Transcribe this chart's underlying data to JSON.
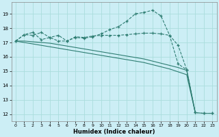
{
  "xlabel": "Humidex (Indice chaleur)",
  "xlim": [
    -0.5,
    23.5
  ],
  "ylim": [
    11.5,
    19.8
  ],
  "yticks": [
    12,
    13,
    14,
    15,
    16,
    17,
    18,
    19
  ],
  "xticks": [
    0,
    1,
    2,
    3,
    4,
    5,
    6,
    7,
    8,
    9,
    10,
    11,
    12,
    13,
    14,
    15,
    16,
    17,
    18,
    19,
    20,
    21,
    22,
    23
  ],
  "bg_color": "#cceef5",
  "grid_color": "#aadddd",
  "line_color": "#2e7d72",
  "series_flat_x": [
    0,
    1,
    2,
    3,
    4,
    5,
    6,
    7,
    8,
    9,
    10,
    11,
    12,
    13,
    14,
    15,
    16,
    17,
    18,
    19,
    20,
    21,
    22,
    23
  ],
  "series_flat_y": [
    17.1,
    17.55,
    17.5,
    17.7,
    17.35,
    17.5,
    17.1,
    17.4,
    17.35,
    17.45,
    17.5,
    17.5,
    17.5,
    17.55,
    17.6,
    17.65,
    17.65,
    17.6,
    17.5,
    16.8,
    15.1,
    12.1,
    12.05,
    12.05
  ],
  "series_curve_x": [
    0,
    1,
    2,
    3,
    4,
    5,
    6,
    7,
    8,
    9,
    10,
    11,
    12,
    13,
    14,
    15,
    16,
    17,
    18,
    19,
    20,
    21,
    22,
    23
  ],
  "series_curve_y": [
    17.1,
    17.55,
    17.7,
    17.2,
    17.35,
    17.1,
    17.1,
    17.35,
    17.3,
    17.4,
    17.6,
    17.9,
    18.1,
    18.5,
    19.0,
    19.1,
    19.25,
    18.85,
    17.5,
    15.5,
    15.1,
    12.1,
    12.05,
    12.05
  ],
  "series_line1_x": [
    0,
    1,
    2,
    3,
    4,
    5,
    6,
    7,
    8,
    9,
    10,
    11,
    12,
    13,
    14,
    15,
    16,
    17,
    18,
    19,
    20,
    21
  ],
  "series_line1_y": [
    17.1,
    17.1,
    17.05,
    17.0,
    16.95,
    16.85,
    16.75,
    16.65,
    16.55,
    16.45,
    16.35,
    16.25,
    16.15,
    16.05,
    15.95,
    15.85,
    15.7,
    15.55,
    15.4,
    15.25,
    15.05,
    12.1
  ],
  "series_line2_x": [
    0,
    1,
    2,
    3,
    4,
    5,
    6,
    7,
    8,
    9,
    10,
    11,
    12,
    13,
    14,
    15,
    16,
    17,
    18,
    19,
    20,
    21
  ],
  "series_line2_y": [
    17.1,
    17.0,
    16.9,
    16.8,
    16.7,
    16.6,
    16.5,
    16.4,
    16.3,
    16.2,
    16.1,
    16.0,
    15.9,
    15.8,
    15.7,
    15.6,
    15.45,
    15.3,
    15.15,
    14.95,
    14.75,
    12.1
  ]
}
